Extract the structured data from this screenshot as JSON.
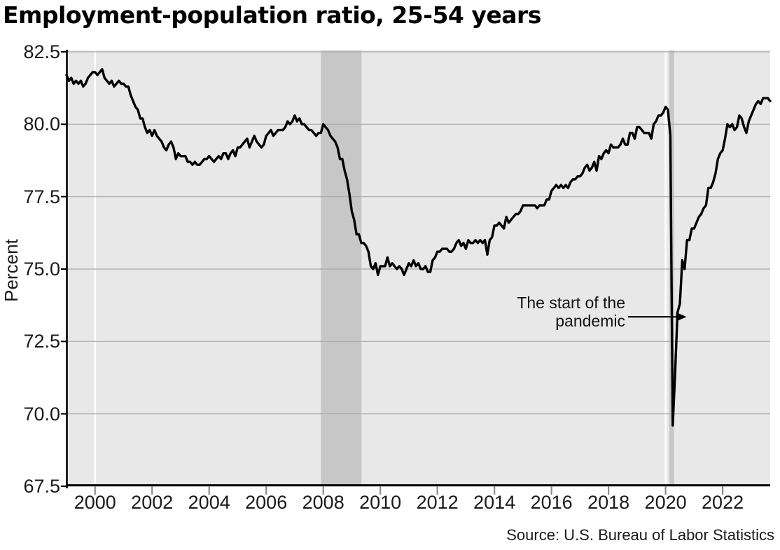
{
  "chart_data": {
    "type": "line",
    "title": "Employment-population ratio, 25-54 years",
    "ylabel": "Percent",
    "xlabel": "",
    "source": "Source: U.S. Bureau of Labor Statistics",
    "legend": "none",
    "grid": "horizontal",
    "xlim": [
      1999.0,
      2023.6667
    ],
    "ylim": [
      67.5,
      82.5
    ],
    "y_ticks": [
      {
        "value": 82.5,
        "label": "82.5"
      },
      {
        "value": 80.0,
        "label": "80.0"
      },
      {
        "value": 77.5,
        "label": "77.5"
      },
      {
        "value": 75.0,
        "label": "75.0"
      },
      {
        "value": 72.5,
        "label": "72.5"
      },
      {
        "value": 70.0,
        "label": "70.0"
      },
      {
        "value": 67.5,
        "label": "67.5"
      }
    ],
    "x_ticks": [
      {
        "value": 2000,
        "label": "2000"
      },
      {
        "value": 2002,
        "label": "2002"
      },
      {
        "value": 2004,
        "label": "2004"
      },
      {
        "value": 2006,
        "label": "2006"
      },
      {
        "value": 2008,
        "label": "2008"
      },
      {
        "value": 2010,
        "label": "2010"
      },
      {
        "value": 2012,
        "label": "2012"
      },
      {
        "value": 2014,
        "label": "2014"
      },
      {
        "value": 2016,
        "label": "2016"
      },
      {
        "value": 2018,
        "label": "2018"
      },
      {
        "value": 2020,
        "label": "2020"
      },
      {
        "value": 2022,
        "label": "2022"
      }
    ],
    "recession_bands": [
      {
        "start": 2007.92,
        "end": 2009.34
      },
      {
        "start": 2020.13,
        "end": 2020.3
      }
    ],
    "decade_lines": [
      2000,
      2020
    ],
    "annotation": {
      "text_line1": "The start of the",
      "text_line2": "pandemic",
      "arrow_from_x": 2018.7,
      "arrow_to_x": 2019.9,
      "arrow_y_value": 73.35
    },
    "colors": {
      "line": "#000000",
      "plot_bg": "#e8e8e8",
      "recession_band": "#c7c7c7",
      "gridline": "#a9a9a9",
      "decade_line": "#ffffff",
      "axis": "#000000",
      "x_tick_mark": "#8c8c8c",
      "y_tick_mark": "#000000",
      "text": "#1a1a1a"
    },
    "series": [
      {
        "name": "Employment-population ratio, 25-54 years",
        "frequency": "monthly",
        "start": "1999-01",
        "end": "2023-09",
        "unit": "percent",
        "values": [
          81.7,
          81.5,
          81.6,
          81.4,
          81.5,
          81.4,
          81.5,
          81.3,
          81.4,
          81.6,
          81.7,
          81.8,
          81.8,
          81.7,
          81.8,
          81.9,
          81.6,
          81.5,
          81.4,
          81.5,
          81.3,
          81.4,
          81.5,
          81.4,
          81.4,
          81.3,
          81.3,
          81.0,
          80.8,
          80.6,
          80.5,
          80.2,
          80.2,
          79.9,
          79.7,
          79.8,
          79.6,
          79.8,
          79.6,
          79.5,
          79.4,
          79.2,
          79.1,
          79.3,
          79.4,
          79.2,
          78.8,
          79.0,
          78.9,
          78.9,
          78.9,
          78.7,
          78.7,
          78.6,
          78.7,
          78.6,
          78.6,
          78.7,
          78.8,
          78.8,
          78.9,
          78.8,
          78.7,
          78.8,
          78.9,
          78.8,
          79.0,
          79.0,
          78.8,
          79.0,
          79.1,
          78.9,
          79.2,
          79.2,
          79.3,
          79.4,
          79.5,
          79.2,
          79.4,
          79.6,
          79.4,
          79.3,
          79.2,
          79.3,
          79.6,
          79.7,
          79.8,
          79.6,
          79.7,
          79.8,
          79.8,
          79.8,
          79.9,
          80.1,
          80.0,
          80.1,
          80.3,
          80.1,
          80.2,
          80.0,
          80.0,
          79.9,
          79.8,
          79.8,
          79.7,
          79.6,
          79.7,
          79.7,
          80.0,
          79.9,
          79.8,
          79.6,
          79.5,
          79.4,
          79.2,
          78.8,
          78.8,
          78.4,
          78.1,
          77.6,
          77.0,
          76.7,
          76.2,
          76.2,
          75.9,
          75.9,
          75.8,
          75.6,
          75.1,
          75.0,
          75.2,
          74.8,
          75.1,
          75.1,
          75.1,
          75.4,
          75.1,
          75.2,
          75.1,
          75.0,
          75.1,
          75.0,
          74.8,
          75.0,
          75.2,
          75.1,
          75.3,
          75.1,
          75.2,
          75.0,
          75.0,
          75.1,
          74.9,
          74.9,
          75.3,
          75.4,
          75.6,
          75.6,
          75.7,
          75.7,
          75.7,
          75.6,
          75.6,
          75.7,
          75.9,
          76.0,
          75.8,
          75.9,
          75.7,
          76.0,
          75.9,
          75.9,
          76.0,
          75.9,
          76.0,
          75.9,
          76.0,
          75.5,
          76.0,
          76.1,
          76.5,
          76.5,
          76.6,
          76.5,
          76.4,
          76.8,
          76.6,
          76.7,
          76.8,
          76.9,
          76.9,
          77.0,
          77.2,
          77.2,
          77.2,
          77.2,
          77.2,
          77.2,
          77.1,
          77.2,
          77.2,
          77.2,
          77.4,
          77.4,
          77.7,
          77.8,
          77.9,
          77.8,
          77.9,
          77.8,
          77.9,
          77.8,
          78.0,
          78.1,
          78.1,
          78.2,
          78.2,
          78.3,
          78.5,
          78.6,
          78.4,
          78.5,
          78.7,
          78.4,
          78.9,
          78.8,
          79.0,
          79.1,
          79.0,
          79.3,
          79.2,
          79.2,
          79.2,
          79.3,
          79.5,
          79.3,
          79.3,
          79.7,
          79.7,
          79.5,
          79.9,
          79.9,
          79.8,
          79.7,
          79.7,
          79.7,
          79.5,
          80.0,
          80.1,
          80.3,
          80.3,
          80.4,
          80.6,
          80.5,
          79.6,
          69.6,
          71.4,
          73.5,
          73.8,
          75.3,
          75.0,
          76.0,
          76.0,
          76.4,
          76.4,
          76.6,
          76.8,
          76.9,
          77.1,
          77.2,
          77.8,
          77.8,
          78.0,
          78.3,
          78.8,
          79.0,
          79.1,
          79.5,
          80.0,
          79.9,
          80.0,
          79.8,
          79.9,
          80.3,
          80.2,
          79.9,
          79.7,
          80.1,
          80.3,
          80.5,
          80.7,
          80.8,
          80.7,
          80.9,
          80.9,
          80.9,
          80.8
        ]
      }
    ]
  }
}
